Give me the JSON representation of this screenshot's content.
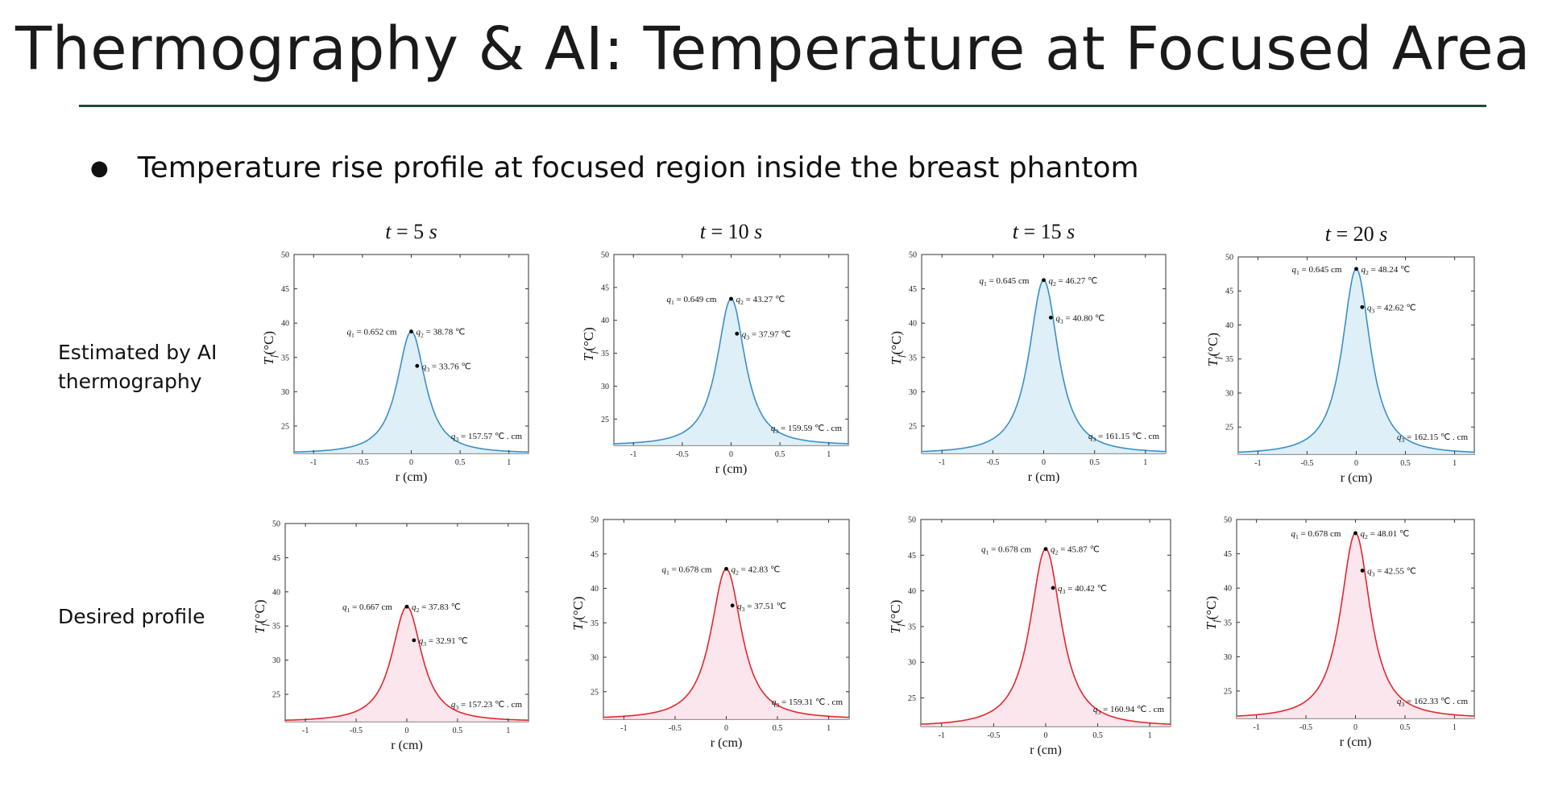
{
  "slide": {
    "title": "Thermography & AI: Temperature at Focused Area",
    "bullet": "Temperature rise profile at focused region inside the breast phantom",
    "row_labels": [
      "Estimated by AI\nthermography",
      "Desired profile"
    ]
  },
  "colors": {
    "title_rule": "#1d4a3c",
    "ai_line": "#3a8fc8",
    "ai_fill": "#d6ebf6",
    "desired_line": "#e0282c",
    "desired_fill": "#fbe0ea"
  },
  "chart_data": [
    {
      "type": "area",
      "row": "ai",
      "title": "t = 5 s",
      "time_label": "t = 5",
      "time_unit": "s",
      "xlabel": "r (cm)",
      "ylabel": "T_f (°C)",
      "xlim": [
        -1.2,
        1.2
      ],
      "ylim": [
        21,
        50
      ],
      "xticks": [
        "-1",
        "-0.5",
        "0",
        "0.5",
        "1"
      ],
      "yticks": [
        "25",
        "30",
        "35",
        "40",
        "45",
        "50"
      ],
      "baseline": 21,
      "peak": 38.78,
      "width": 0.652,
      "point_r": 0.06,
      "point_T": 33.76,
      "annotations": {
        "q1": "= 0.652 cm",
        "q2": "= 38.78 ℃",
        "q3_point": "= 33.76 ℃",
        "q3_area": "= 157.57 ℃ . cm"
      }
    },
    {
      "type": "area",
      "row": "ai",
      "title": "t = 10 s",
      "time_label": "t = 10",
      "time_unit": "s",
      "xlabel": "r (cm)",
      "ylabel": "T_f (°C)",
      "xlim": [
        -1.2,
        1.2
      ],
      "ylim": [
        21,
        50
      ],
      "xticks": [
        "-1",
        "-0.5",
        "0",
        "0.5",
        "1"
      ],
      "yticks": [
        "25",
        "30",
        "35",
        "40",
        "45",
        "50"
      ],
      "baseline": 21,
      "peak": 43.27,
      "width": 0.649,
      "point_r": 0.06,
      "point_T": 37.97,
      "annotations": {
        "q1": "= 0.649 cm",
        "q2": "= 43.27 ℃",
        "q3_point": "= 37.97 ℃",
        "q3_area": "= 159.59 ℃ . cm"
      }
    },
    {
      "type": "area",
      "row": "ai",
      "title": "t = 15 s",
      "time_label": "t = 15",
      "time_unit": "s",
      "xlabel": "r (cm)",
      "ylabel": "T_f (°C)",
      "xlim": [
        -1.2,
        1.2
      ],
      "ylim": [
        21,
        50
      ],
      "xticks": [
        "-1",
        "-0.5",
        "0",
        "0.5",
        "1"
      ],
      "yticks": [
        "25",
        "30",
        "35",
        "40",
        "45",
        "50"
      ],
      "baseline": 21,
      "peak": 46.27,
      "width": 0.645,
      "point_r": 0.07,
      "point_T": 40.8,
      "annotations": {
        "q1": "= 0.645 cm",
        "q2": "= 46.27 ℃",
        "q3_point": "= 40.80 ℃",
        "q3_area": "= 161.15 ℃ . cm"
      }
    },
    {
      "type": "area",
      "row": "ai",
      "title": "t = 20 s",
      "time_label": "t = 20",
      "time_unit": "s",
      "xlabel": "r (cm)",
      "ylabel": "T_f (°C)",
      "xlim": [
        -1.2,
        1.2
      ],
      "ylim": [
        21,
        50
      ],
      "xticks": [
        "-1",
        "-0.5",
        "0",
        "0.5",
        "1"
      ],
      "yticks": [
        "25",
        "30",
        "35",
        "40",
        "45",
        "50"
      ],
      "baseline": 21,
      "peak": 48.24,
      "width": 0.645,
      "point_r": 0.06,
      "point_T": 42.62,
      "annotations": {
        "q1": "= 0.645 cm",
        "q2": "= 48.24 ℃",
        "q3_point": "= 42.62 ℃",
        "q3_area": "= 162.15 ℃ . cm"
      }
    },
    {
      "type": "area",
      "row": "desired",
      "title": "",
      "xlabel": "r (cm)",
      "ylabel": "T_f (°C)",
      "xlim": [
        -1.2,
        1.2
      ],
      "ylim": [
        21,
        50
      ],
      "xticks": [
        "-1",
        "-0.5",
        "0",
        "0.5",
        "1"
      ],
      "yticks": [
        "25",
        "30",
        "35",
        "40",
        "45",
        "50"
      ],
      "baseline": 21,
      "peak": 37.83,
      "width": 0.667,
      "point_r": 0.07,
      "point_T": 32.91,
      "annotations": {
        "q1": "= 0.667 cm",
        "q2": "= 37.83 ℃",
        "q3_point": "= 32.91 ℃",
        "q3_area": "= 157.23 ℃ . cm"
      }
    },
    {
      "type": "area",
      "row": "desired",
      "title": "",
      "xlabel": "r (cm)",
      "ylabel": "T_f (°C)",
      "xlim": [
        -1.2,
        1.2
      ],
      "ylim": [
        21,
        50
      ],
      "xticks": [
        "-1",
        "-0.5",
        "0",
        "0.5",
        "1"
      ],
      "yticks": [
        "25",
        "30",
        "35",
        "40",
        "45",
        "50"
      ],
      "baseline": 21,
      "peak": 42.83,
      "width": 0.678,
      "point_r": 0.06,
      "point_T": 37.51,
      "annotations": {
        "q1": "= 0.678 cm",
        "q2": "= 42.83 ℃",
        "q3_point": "= 37.51 ℃",
        "q3_area": "= 159.31 ℃ . cm"
      }
    },
    {
      "type": "area",
      "row": "desired",
      "title": "",
      "xlabel": "r (cm)",
      "ylabel": "T_f (°C)",
      "xlim": [
        -1.2,
        1.2
      ],
      "ylim": [
        21,
        50
      ],
      "xticks": [
        "-1",
        "-0.5",
        "0",
        "0.5",
        "1"
      ],
      "yticks": [
        "25",
        "30",
        "35",
        "40",
        "45",
        "50"
      ],
      "baseline": 21,
      "peak": 45.87,
      "width": 0.678,
      "point_r": 0.07,
      "point_T": 40.42,
      "annotations": {
        "q1": "= 0.678 cm",
        "q2": "= 45.87 ℃",
        "q3_point": "= 40.42 ℃",
        "q3_area": "= 160.94 ℃ . cm"
      }
    },
    {
      "type": "area",
      "row": "desired",
      "title": "",
      "xlabel": "r (cm)",
      "ylabel": "T_f (°C)",
      "xlim": [
        -1.2,
        1.2
      ],
      "ylim": [
        21,
        50
      ],
      "xticks": [
        "-1",
        "-0.5",
        "0",
        "0.5",
        "1"
      ],
      "yticks": [
        "25",
        "30",
        "35",
        "40",
        "45",
        "50"
      ],
      "baseline": 21,
      "peak": 48.01,
      "width": 0.678,
      "point_r": 0.07,
      "point_T": 42.55,
      "annotations": {
        "q1": "= 0.678 cm",
        "q2": "= 48.01 ℃",
        "q3_point": "= 42.55 ℃",
        "q3_area": "= 162.33 ℃ . cm"
      }
    }
  ]
}
